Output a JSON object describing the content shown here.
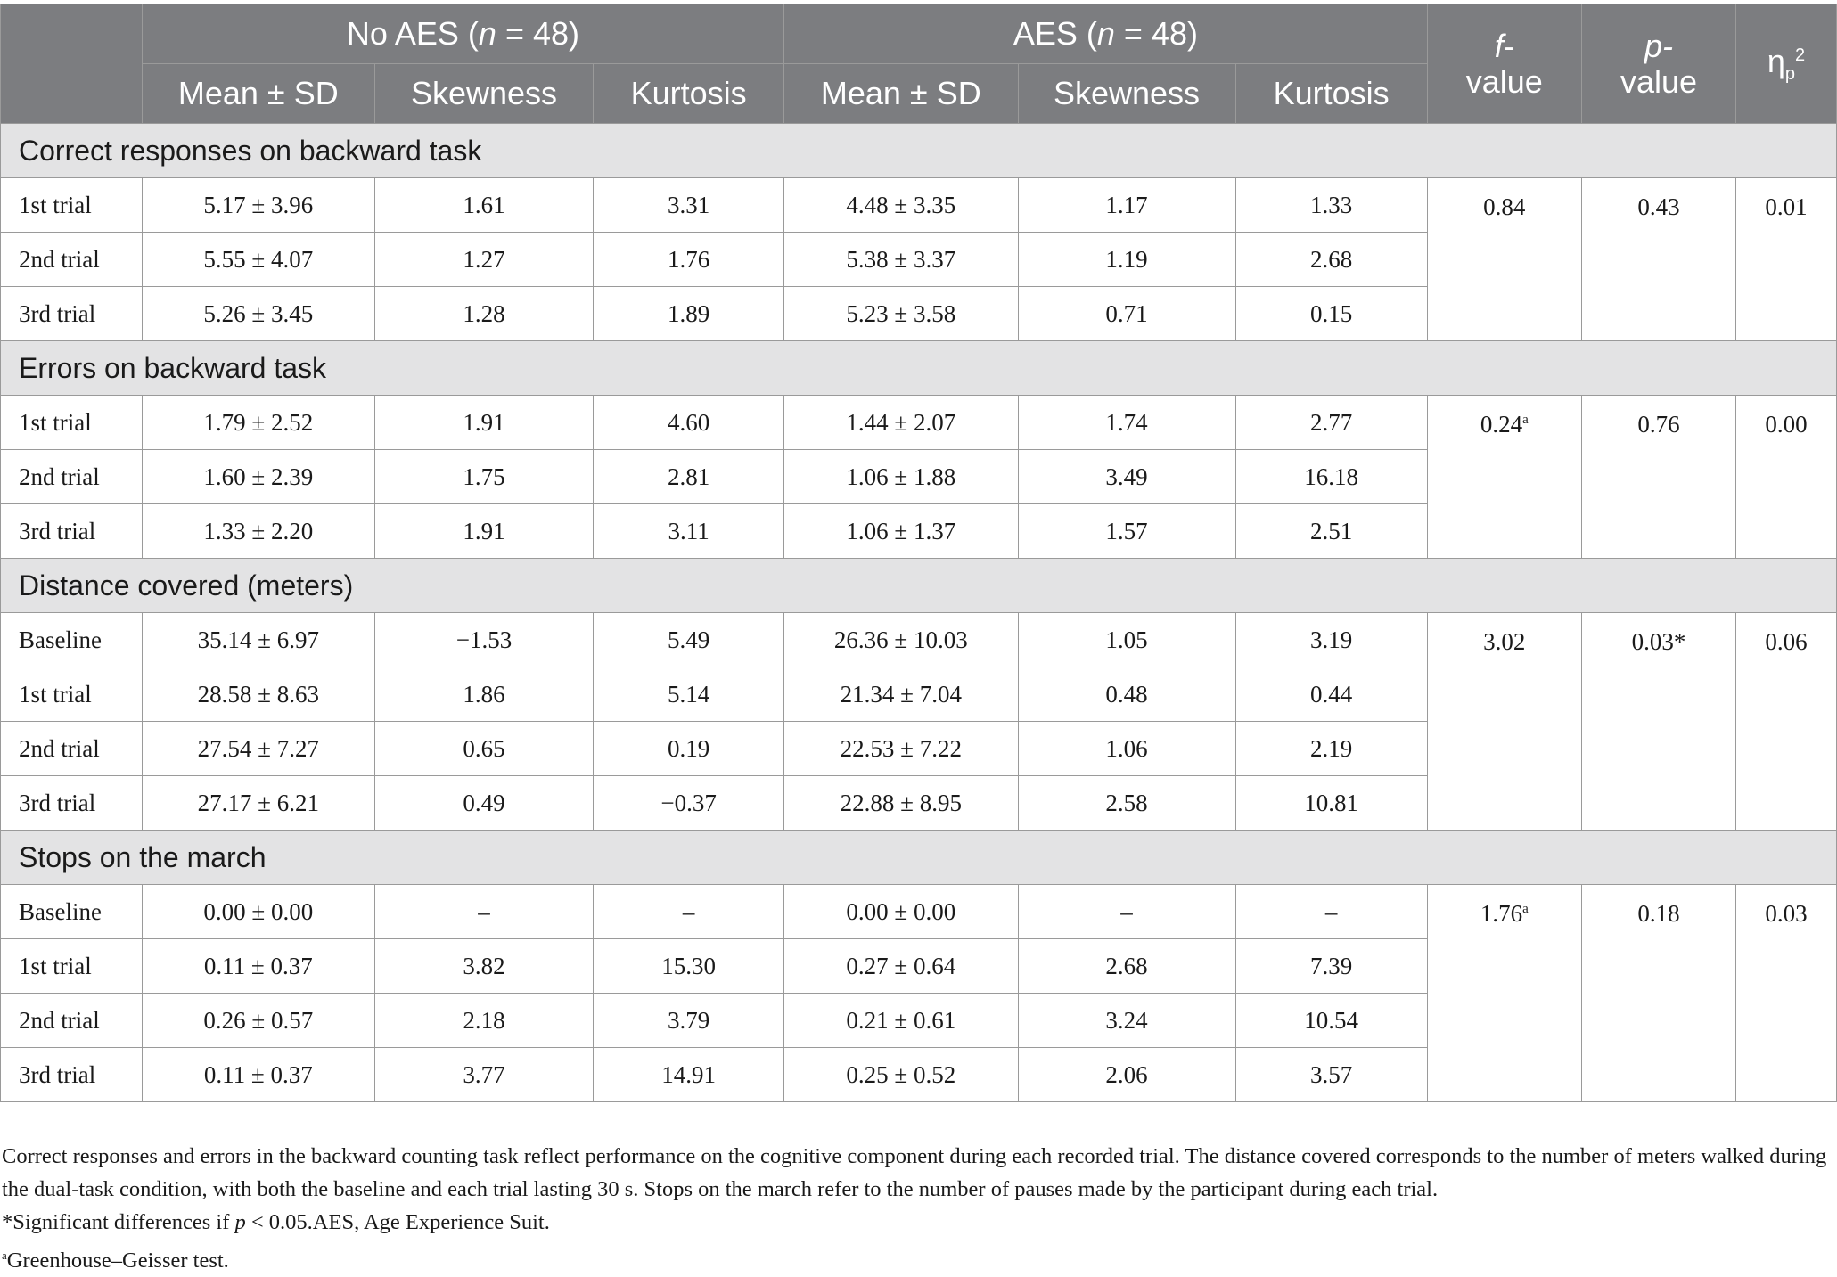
{
  "header": {
    "group1": "No AES (n = 48)",
    "group1_prefix": "No AES (",
    "group1_n": "n",
    "group1_suffix": " = 48)",
    "group2_prefix": "AES (",
    "group2_n": "n",
    "group2_suffix": " = 48)",
    "mean_sd": "Mean ± SD",
    "skewness": "Skewness",
    "kurtosis": "Kurtosis",
    "f_top": "f-",
    "f_bottom": "value",
    "p_top": "p-",
    "p_bottom": "value",
    "eta_base": "η",
    "eta_sub": "p",
    "eta_sup": "2"
  },
  "sections": [
    {
      "title": "Correct responses on backward task",
      "stats": {
        "f": "0.84",
        "f_note": "",
        "p": "0.43",
        "eta": "0.01"
      },
      "rows": [
        {
          "label": "1st trial",
          "noaes_mean": "5.17 ± 3.96",
          "noaes_skew": "1.61",
          "noaes_kurt": "3.31",
          "aes_mean": "4.48 ± 3.35",
          "aes_skew": "1.17",
          "aes_kurt": "1.33"
        },
        {
          "label": "2nd trial",
          "noaes_mean": "5.55 ± 4.07",
          "noaes_skew": "1.27",
          "noaes_kurt": "1.76",
          "aes_mean": "5.38 ± 3.37",
          "aes_skew": "1.19",
          "aes_kurt": "2.68"
        },
        {
          "label": "3rd trial",
          "noaes_mean": "5.26 ± 3.45",
          "noaes_skew": "1.28",
          "noaes_kurt": "1.89",
          "aes_mean": "5.23 ± 3.58",
          "aes_skew": "0.71",
          "aes_kurt": "0.15"
        }
      ]
    },
    {
      "title": "Errors on backward task",
      "stats": {
        "f": "0.24",
        "f_note": "a",
        "p": "0.76",
        "eta": "0.00"
      },
      "rows": [
        {
          "label": "1st trial",
          "noaes_mean": "1.79 ± 2.52",
          "noaes_skew": "1.91",
          "noaes_kurt": "4.60",
          "aes_mean": "1.44 ± 2.07",
          "aes_skew": "1.74",
          "aes_kurt": "2.77"
        },
        {
          "label": "2nd trial",
          "noaes_mean": "1.60 ± 2.39",
          "noaes_skew": "1.75",
          "noaes_kurt": "2.81",
          "aes_mean": "1.06 ± 1.88",
          "aes_skew": "3.49",
          "aes_kurt": "16.18"
        },
        {
          "label": "3rd trial",
          "noaes_mean": "1.33 ± 2.20",
          "noaes_skew": "1.91",
          "noaes_kurt": "3.11",
          "aes_mean": "1.06 ± 1.37",
          "aes_skew": "1.57",
          "aes_kurt": "2.51"
        }
      ]
    },
    {
      "title": "Distance covered (meters)",
      "stats": {
        "f": "3.02",
        "f_note": "",
        "p": "0.03*",
        "eta": "0.06"
      },
      "rows": [
        {
          "label": "Baseline",
          "noaes_mean": "35.14 ± 6.97",
          "noaes_skew": "−1.53",
          "noaes_kurt": "5.49",
          "aes_mean": "26.36 ± 10.03",
          "aes_skew": "1.05",
          "aes_kurt": "3.19"
        },
        {
          "label": "1st trial",
          "noaes_mean": "28.58 ± 8.63",
          "noaes_skew": "1.86",
          "noaes_kurt": "5.14",
          "aes_mean": "21.34 ± 7.04",
          "aes_skew": "0.48",
          "aes_kurt": "0.44"
        },
        {
          "label": "2nd trial",
          "noaes_mean": "27.54 ± 7.27",
          "noaes_skew": "0.65",
          "noaes_kurt": "0.19",
          "aes_mean": "22.53 ± 7.22",
          "aes_skew": "1.06",
          "aes_kurt": "2.19"
        },
        {
          "label": "3rd trial",
          "noaes_mean": "27.17 ± 6.21",
          "noaes_skew": "0.49",
          "noaes_kurt": "−0.37",
          "aes_mean": "22.88 ± 8.95",
          "aes_skew": "2.58",
          "aes_kurt": "10.81"
        }
      ]
    },
    {
      "title": "Stops on the march",
      "stats": {
        "f": "1.76",
        "f_note": "a",
        "p": "0.18",
        "eta": "0.03"
      },
      "rows": [
        {
          "label": "Baseline",
          "noaes_mean": "0.00 ± 0.00",
          "noaes_skew": "–",
          "noaes_kurt": "–",
          "aes_mean": "0.00 ± 0.00",
          "aes_skew": "–",
          "aes_kurt": "–"
        },
        {
          "label": "1st trial",
          "noaes_mean": "0.11 ± 0.37",
          "noaes_skew": "3.82",
          "noaes_kurt": "15.30",
          "aes_mean": "0.27 ± 0.64",
          "aes_skew": "2.68",
          "aes_kurt": "7.39"
        },
        {
          "label": "2nd trial",
          "noaes_mean": "0.26 ± 0.57",
          "noaes_skew": "2.18",
          "noaes_kurt": "3.79",
          "aes_mean": "0.21 ± 0.61",
          "aes_skew": "3.24",
          "aes_kurt": "10.54"
        },
        {
          "label": "3rd trial",
          "noaes_mean": "0.11 ± 0.37",
          "noaes_skew": "3.77",
          "noaes_kurt": "14.91",
          "aes_mean": "0.25 ± 0.52",
          "aes_skew": "2.06",
          "aes_kurt": "3.57"
        }
      ]
    }
  ],
  "footnotes": {
    "line1": "Correct responses and errors in the backward counting task reflect performance on the cognitive component during each recorded trial. The distance covered corresponds to the number of meters walked during the dual-task condition, with both the baseline and each trial lasting 30 s. Stops on the march refer to the number of pauses made by the participant during each trial.",
    "sig_prefix": "*Significant differences if ",
    "sig_p": "p",
    "sig_suffix": " < 0.05.AES, Age Experience Suit.",
    "gg_mark": "a",
    "gg_text": "Greenhouse–Geisser test."
  }
}
